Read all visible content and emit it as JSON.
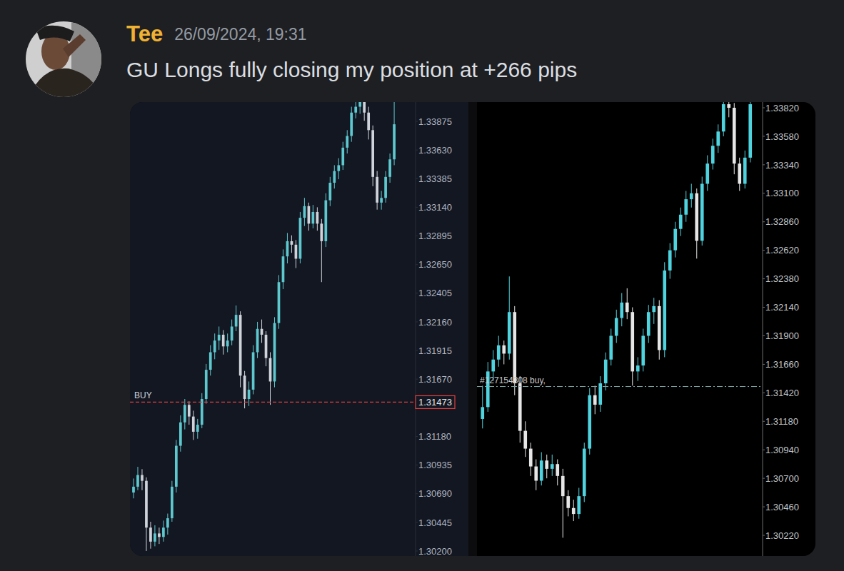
{
  "message": {
    "author": "Tee",
    "timestamp": "26/09/2024, 19:31",
    "text": "GU Longs fully closing my position at +266 pips"
  },
  "chart_data": [
    {
      "type": "candlestick",
      "tick_labels": "y",
      "ylim": [
        1.30157,
        1.3404
      ],
      "yticks": [
        {
          "value": 1.33875,
          "label": "1.33875"
        },
        {
          "value": 1.3363,
          "label": "1.33630"
        },
        {
          "value": 1.33385,
          "label": "1.33385"
        },
        {
          "value": 1.3314,
          "label": "1.33140"
        },
        {
          "value": 1.32895,
          "label": "1.32895"
        },
        {
          "value": 1.3265,
          "label": "1.32650"
        },
        {
          "value": 1.32405,
          "label": "1.32405"
        },
        {
          "value": 1.3216,
          "label": "1.32160"
        },
        {
          "value": 1.31915,
          "label": "1.31915"
        },
        {
          "value": 1.3167,
          "label": "1.31670"
        },
        {
          "value": 1.3118,
          "label": "1.31180"
        },
        {
          "value": 1.30935,
          "label": "1.30935"
        },
        {
          "value": 1.3069,
          "label": "1.30690"
        },
        {
          "value": 1.30445,
          "label": "1.30445"
        },
        {
          "value": 1.302,
          "label": "1.30200"
        }
      ],
      "annotations": [
        {
          "text": "BUY",
          "value": 1.31473,
          "price_label": "1.31473"
        }
      ],
      "candles": [
        [
          1.307,
          1.3082,
          1.3065,
          1.3075
        ],
        [
          1.3075,
          1.3092,
          1.3072,
          1.3085
        ],
        [
          1.3085,
          1.309,
          1.3072,
          1.308
        ],
        [
          1.308,
          1.3083,
          1.302,
          1.304
        ],
        [
          1.304,
          1.3045,
          1.3022,
          1.3028
        ],
        [
          1.3028,
          1.3042,
          1.3024,
          1.3035
        ],
        [
          1.3035,
          1.304,
          1.3026,
          1.3032
        ],
        [
          1.3032,
          1.3046,
          1.3028,
          1.304
        ],
        [
          1.304,
          1.3052,
          1.3034,
          1.3048
        ],
        [
          1.3048,
          1.308,
          1.3045,
          1.3075
        ],
        [
          1.3075,
          1.3115,
          1.307,
          1.311
        ],
        [
          1.311,
          1.3136,
          1.3105,
          1.313
        ],
        [
          1.313,
          1.315,
          1.3124,
          1.3145
        ],
        [
          1.3145,
          1.3148,
          1.3128,
          1.3135
        ],
        [
          1.3135,
          1.314,
          1.3115,
          1.3122
        ],
        [
          1.3122,
          1.3133,
          1.3116,
          1.3128
        ],
        [
          1.3128,
          1.3155,
          1.3125,
          1.315
        ],
        [
          1.315,
          1.318,
          1.3146,
          1.3175
        ],
        [
          1.3175,
          1.3196,
          1.317,
          1.319
        ],
        [
          1.319,
          1.3206,
          1.3184,
          1.32
        ],
        [
          1.32,
          1.3212,
          1.3192,
          1.3205
        ],
        [
          1.3205,
          1.3209,
          1.3188,
          1.3195
        ],
        [
          1.3195,
          1.3206,
          1.319,
          1.32
        ],
        [
          1.32,
          1.3218,
          1.3196,
          1.3212
        ],
        [
          1.3212,
          1.323,
          1.3208,
          1.3222
        ],
        [
          1.3222,
          1.3225,
          1.316,
          1.317
        ],
        [
          1.317,
          1.3174,
          1.3142,
          1.315
        ],
        [
          1.315,
          1.3165,
          1.3144,
          1.3158
        ],
        [
          1.3158,
          1.3196,
          1.3154,
          1.319
        ],
        [
          1.319,
          1.3216,
          1.3185,
          1.321
        ],
        [
          1.321,
          1.3218,
          1.3198,
          1.3205
        ],
        [
          1.3205,
          1.3208,
          1.3178,
          1.3185
        ],
        [
          1.3185,
          1.319,
          1.3145,
          1.3165
        ],
        [
          1.3165,
          1.322,
          1.316,
          1.3215
        ],
        [
          1.3215,
          1.3256,
          1.321,
          1.325
        ],
        [
          1.325,
          1.3278,
          1.3244,
          1.3272
        ],
        [
          1.3272,
          1.3292,
          1.3266,
          1.3285
        ],
        [
          1.3285,
          1.329,
          1.3275,
          1.3282
        ],
        [
          1.3282,
          1.3286,
          1.3262,
          1.327
        ],
        [
          1.327,
          1.331,
          1.3266,
          1.3305
        ],
        [
          1.3305,
          1.3322,
          1.3298,
          1.3315
        ],
        [
          1.3315,
          1.3318,
          1.3294,
          1.33
        ],
        [
          1.33,
          1.3316,
          1.3296,
          1.331
        ],
        [
          1.331,
          1.3314,
          1.3294,
          1.33
        ],
        [
          1.33,
          1.3304,
          1.325,
          1.3285
        ],
        [
          1.3285,
          1.3326,
          1.328,
          1.332
        ],
        [
          1.332,
          1.334,
          1.3315,
          1.3335
        ],
        [
          1.3335,
          1.335,
          1.333,
          1.3345
        ],
        [
          1.3345,
          1.3356,
          1.3338,
          1.335
        ],
        [
          1.335,
          1.337,
          1.3346,
          1.3365
        ],
        [
          1.3365,
          1.338,
          1.336,
          1.3375
        ],
        [
          1.3375,
          1.34,
          1.337,
          1.3395
        ],
        [
          1.3395,
          1.3408,
          1.339,
          1.34
        ],
        [
          1.34,
          1.3412,
          1.3394,
          1.3405
        ],
        [
          1.3405,
          1.3408,
          1.3388,
          1.3395
        ],
        [
          1.3395,
          1.34,
          1.3372,
          1.338
        ],
        [
          1.338,
          1.3384,
          1.3332,
          1.334
        ],
        [
          1.334,
          1.3345,
          1.3312,
          1.3318
        ],
        [
          1.3318,
          1.3328,
          1.3312,
          1.3322
        ],
        [
          1.3322,
          1.3345,
          1.3318,
          1.334
        ],
        [
          1.334,
          1.336,
          1.3335,
          1.3355
        ],
        [
          1.3355,
          1.3412,
          1.335,
          1.3385
        ]
      ]
    },
    {
      "type": "candlestick",
      "tick_labels": "y",
      "ylim": [
        1.30046,
        1.33868
      ],
      "yticks": [
        {
          "value": 1.3382,
          "label": "1.33820"
        },
        {
          "value": 1.3358,
          "label": "1.33580"
        },
        {
          "value": 1.3334,
          "label": "1.33340"
        },
        {
          "value": 1.331,
          "label": "1.33100"
        },
        {
          "value": 1.3286,
          "label": "1.32860"
        },
        {
          "value": 1.3262,
          "label": "1.32620"
        },
        {
          "value": 1.3238,
          "label": "1.32380"
        },
        {
          "value": 1.3214,
          "label": "1.32140"
        },
        {
          "value": 1.319,
          "label": "1.31900"
        },
        {
          "value": 1.3166,
          "label": "1.31660"
        },
        {
          "value": 1.3142,
          "label": "1.31420"
        },
        {
          "value": 1.3118,
          "label": "1.31180"
        },
        {
          "value": 1.3094,
          "label": "1.30940"
        },
        {
          "value": 1.307,
          "label": "1.30700"
        },
        {
          "value": 1.3046,
          "label": "1.30460"
        },
        {
          "value": 1.3022,
          "label": "1.30220"
        }
      ],
      "annotations": [
        {
          "text": "#127154308 buy,",
          "value": 1.31473
        }
      ],
      "candles": [
        [
          1.312,
          1.3148,
          1.3112,
          1.313
        ],
        [
          1.313,
          1.3168,
          1.3126,
          1.316
        ],
        [
          1.316,
          1.3178,
          1.3152,
          1.317
        ],
        [
          1.317,
          1.319,
          1.3164,
          1.3182
        ],
        [
          1.3182,
          1.3186,
          1.3166,
          1.3175
        ],
        [
          1.3175,
          1.324,
          1.317,
          1.321
        ],
        [
          1.321,
          1.3215,
          1.314,
          1.315
        ],
        [
          1.315,
          1.3156,
          1.31,
          1.311
        ],
        [
          1.311,
          1.3118,
          1.3088,
          1.3095
        ],
        [
          1.3095,
          1.31,
          1.3072,
          1.308
        ],
        [
          1.308,
          1.3086,
          1.306,
          1.3068
        ],
        [
          1.3068,
          1.3092,
          1.3064,
          1.3085
        ],
        [
          1.3085,
          1.309,
          1.307,
          1.3078
        ],
        [
          1.3078,
          1.309,
          1.3072,
          1.3082
        ],
        [
          1.3082,
          1.3086,
          1.3064,
          1.3072
        ],
        [
          1.3072,
          1.3078,
          1.302,
          1.3055
        ],
        [
          1.3055,
          1.306,
          1.3038,
          1.3045
        ],
        [
          1.3045,
          1.3052,
          1.3034,
          1.304
        ],
        [
          1.304,
          1.3062,
          1.3036,
          1.3055
        ],
        [
          1.3055,
          1.31,
          1.305,
          1.3095
        ],
        [
          1.3095,
          1.3146,
          1.309,
          1.314
        ],
        [
          1.314,
          1.3148,
          1.3124,
          1.3132
        ],
        [
          1.3132,
          1.3156,
          1.3126,
          1.315
        ],
        [
          1.315,
          1.3176,
          1.3144,
          1.317
        ],
        [
          1.317,
          1.3196,
          1.3165,
          1.319
        ],
        [
          1.319,
          1.3212,
          1.3184,
          1.3205
        ],
        [
          1.3205,
          1.3226,
          1.3198,
          1.3218
        ],
        [
          1.3218,
          1.323,
          1.3204,
          1.321
        ],
        [
          1.321,
          1.3214,
          1.3148,
          1.316
        ],
        [
          1.316,
          1.3172,
          1.3152,
          1.3165
        ],
        [
          1.3165,
          1.3196,
          1.316,
          1.319
        ],
        [
          1.319,
          1.3216,
          1.3184,
          1.321
        ],
        [
          1.321,
          1.3222,
          1.32,
          1.3215
        ],
        [
          1.3215,
          1.322,
          1.317,
          1.3178
        ],
        [
          1.3178,
          1.3252,
          1.3172,
          1.3245
        ],
        [
          1.3245,
          1.3268,
          1.3238,
          1.3262
        ],
        [
          1.3262,
          1.3286,
          1.3256,
          1.328
        ],
        [
          1.328,
          1.3298,
          1.3274,
          1.3292
        ],
        [
          1.3292,
          1.3312,
          1.3286,
          1.3305
        ],
        [
          1.3305,
          1.3318,
          1.3298,
          1.331
        ],
        [
          1.331,
          1.3314,
          1.3255,
          1.327
        ],
        [
          1.327,
          1.3324,
          1.3266,
          1.3318
        ],
        [
          1.3318,
          1.3342,
          1.3312,
          1.3335
        ],
        [
          1.3335,
          1.3356,
          1.333,
          1.335
        ],
        [
          1.335,
          1.3368,
          1.3344,
          1.3362
        ],
        [
          1.3362,
          1.3392,
          1.3358,
          1.3385
        ],
        [
          1.3385,
          1.3392,
          1.3374,
          1.3382
        ],
        [
          1.3382,
          1.3386,
          1.3326,
          1.3335
        ],
        [
          1.3335,
          1.334,
          1.3312,
          1.3318
        ],
        [
          1.3318,
          1.3346,
          1.3314,
          1.334
        ],
        [
          1.334,
          1.3395,
          1.3336,
          1.3385
        ]
      ]
    }
  ]
}
